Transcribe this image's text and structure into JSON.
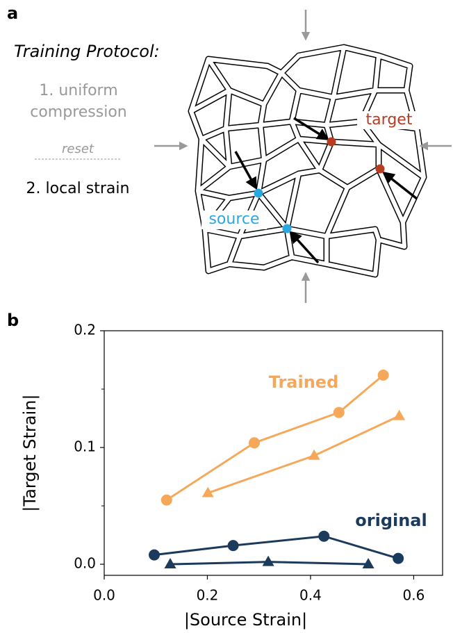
{
  "panel_a": {
    "label": "a",
    "protocol_title": "Training Protocol:",
    "step1_line1": "1. uniform",
    "step1_line2": "compression",
    "reset": "reset",
    "step2": "2. local strain",
    "target": "target",
    "source": "source"
  },
  "chart_data": {
    "type": "line",
    "panel_label": "b",
    "xlabel": "|Source Strain|",
    "ylabel": "|Target Strain|",
    "xlim": [
      0,
      0.656
    ],
    "ylim": [
      -0.0095,
      0.2
    ],
    "xticks": [
      {
        "value": 0,
        "label": "0.0"
      },
      {
        "value": 0.2,
        "label": "0.2"
      },
      {
        "value": 0.4,
        "label": "0.4"
      },
      {
        "value": 0.6,
        "label": "0.6"
      }
    ],
    "yticks": [
      {
        "value": 0,
        "label": "0.0"
      },
      {
        "value": 0.1,
        "label": "0.1"
      },
      {
        "value": 0.2,
        "label": "0.2"
      }
    ],
    "yminorticks": [
      0.05,
      0.15
    ],
    "annotations": [
      {
        "text": "Trained",
        "color": "#f5a85a"
      },
      {
        "text": "original",
        "color": "#1b3a5c"
      }
    ],
    "series": [
      {
        "color": "#f5a85a",
        "marker": "circle",
        "x": [
          0.121,
          0.291,
          0.455,
          0.541
        ],
        "values": [
          0.055,
          0.104,
          0.13,
          0.162
        ]
      },
      {
        "color": "#f5a85a",
        "marker": "triangle",
        "x": [
          0.201,
          0.407,
          0.572
        ],
        "values": [
          0.061,
          0.093,
          0.127
        ]
      },
      {
        "color": "#1b3a5c",
        "marker": "circle",
        "x": [
          0.097,
          0.25,
          0.426,
          0.57
        ],
        "values": [
          0.008,
          0.016,
          0.024,
          0.005
        ]
      },
      {
        "color": "#1b3a5c",
        "marker": "triangle",
        "x": [
          0.128,
          0.318,
          0.512
        ],
        "values": [
          0,
          0.002,
          0
        ]
      }
    ]
  }
}
